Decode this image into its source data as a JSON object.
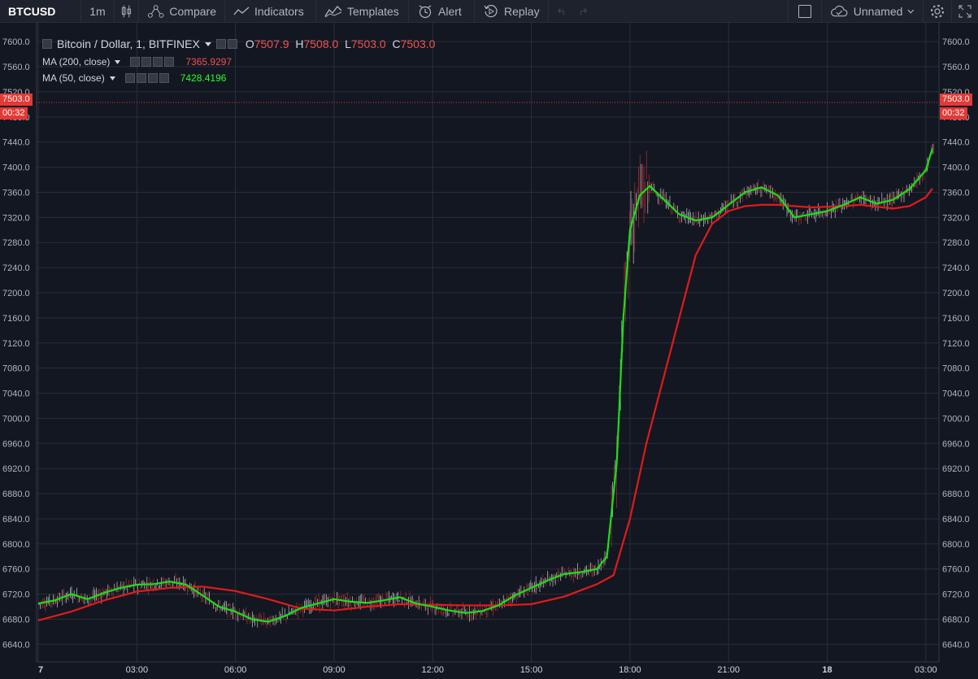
{
  "toolbar": {
    "symbol": "BTCUSD",
    "interval": "1m",
    "compare": "Compare",
    "indicators": "Indicators",
    "templates": "Templates",
    "alert": "Alert",
    "replay": "Replay",
    "layout_name": "Unnamed"
  },
  "legend": {
    "title": "Bitcoin / Dollar, 1, BITFINEX",
    "o_label": "O",
    "o_value": "7507.9",
    "h_label": "H",
    "h_value": "7508.0",
    "l_label": "L",
    "l_value": "7503.0",
    "c_label": "C",
    "c_value": "7503.0",
    "ma200_label": "MA (200, close)",
    "ma200_value": "7365.9297",
    "ma50_label": "MA (50, close)",
    "ma50_value": "7428.4196"
  },
  "price_tag": {
    "value": "7503.0",
    "countdown": "00:32"
  },
  "colors": {
    "background": "#131722",
    "grid": "#2a2e39",
    "ma200": "#e01b1b",
    "ma50": "#19e019",
    "up": "#ffffff",
    "down": "#e53935"
  },
  "chart_data": {
    "type": "line",
    "yticks": [
      6640,
      6680,
      6720,
      6760,
      6800,
      6840,
      6880,
      6920,
      6960,
      7000,
      7040,
      7080,
      7120,
      7160,
      7200,
      7240,
      7280,
      7320,
      7360,
      7400,
      7440,
      7480,
      7520,
      7560,
      7600
    ],
    "ytick_labels": [
      "6640.0",
      "6680.0",
      "6720.0",
      "6760.0",
      "6800.0",
      "6840.0",
      "6880.0",
      "6920.0",
      "6960.0",
      "7000.0",
      "7040.0",
      "7080.0",
      "7120.0",
      "7160.0",
      "7200.0",
      "7240.0",
      "7280.0",
      "7320.0",
      "7360.0",
      "7400.0",
      "7440.0",
      "7480.0",
      "7520.0",
      "7560.0",
      "7600.0"
    ],
    "ylim": [
      6612,
      7630
    ],
    "xlim": [
      -0.05,
      27.4
    ],
    "xticks": [
      0,
      3,
      6,
      9,
      12,
      15,
      18,
      21,
      24,
      27
    ],
    "xtick_labels": [
      "7",
      "03:00",
      "06:00",
      "09:00",
      "12:00",
      "15:00",
      "18:00",
      "21:00",
      "18",
      "03:00"
    ],
    "grid": true,
    "last_price": 7503.0,
    "series": [
      {
        "name": "MA (200, close)",
        "color": "#e01b1b",
        "x": [
          0,
          1,
          2,
          3,
          4,
          5,
          6,
          7,
          8,
          9,
          10,
          11,
          12,
          13,
          14,
          15,
          16,
          17,
          17.5,
          18,
          18.5,
          19,
          19.5,
          20,
          20.5,
          21,
          21.5,
          22,
          22.5,
          23,
          23.5,
          24,
          24.5,
          25,
          25.5,
          26,
          26.5,
          27,
          27.2
        ],
        "y": [
          6678,
          6692,
          6710,
          6724,
          6730,
          6732,
          6725,
          6712,
          6697,
          6694,
          6700,
          6704,
          6703,
          6702,
          6702,
          6704,
          6716,
          6736,
          6750,
          6840,
          6960,
          7060,
          7160,
          7260,
          7310,
          7330,
          7338,
          7340,
          7340,
          7338,
          7336,
          7337,
          7338,
          7340,
          7337,
          7334,
          7338,
          7352,
          7366
        ]
      },
      {
        "name": "MA (50, close)",
        "color": "#19e019",
        "x": [
          0,
          0.5,
          1,
          1.5,
          2,
          2.5,
          3,
          3.5,
          4,
          4.5,
          5,
          5.5,
          6,
          6.5,
          7,
          7.5,
          8,
          8.5,
          9,
          9.5,
          10,
          10.5,
          11,
          11.5,
          12,
          12.5,
          13,
          13.5,
          14,
          14.5,
          15,
          15.5,
          16,
          16.5,
          17,
          17.3,
          17.6,
          17.8,
          18,
          18.3,
          18.6,
          19,
          19.5,
          20,
          20.5,
          21,
          21.5,
          22,
          22.5,
          23,
          23.5,
          24,
          24.5,
          25,
          25.5,
          26,
          26.5,
          27,
          27.2
        ],
        "y": [
          6705,
          6710,
          6720,
          6712,
          6722,
          6730,
          6735,
          6736,
          6740,
          6735,
          6718,
          6700,
          6692,
          6680,
          6676,
          6685,
          6698,
          6705,
          6712,
          6708,
          6706,
          6710,
          6715,
          6705,
          6700,
          6694,
          6690,
          6693,
          6702,
          6718,
          6730,
          6742,
          6752,
          6755,
          6760,
          6780,
          6930,
          7160,
          7300,
          7355,
          7370,
          7350,
          7325,
          7315,
          7320,
          7340,
          7360,
          7368,
          7355,
          7320,
          7325,
          7330,
          7340,
          7352,
          7342,
          7348,
          7365,
          7395,
          7430
        ]
      }
    ]
  }
}
